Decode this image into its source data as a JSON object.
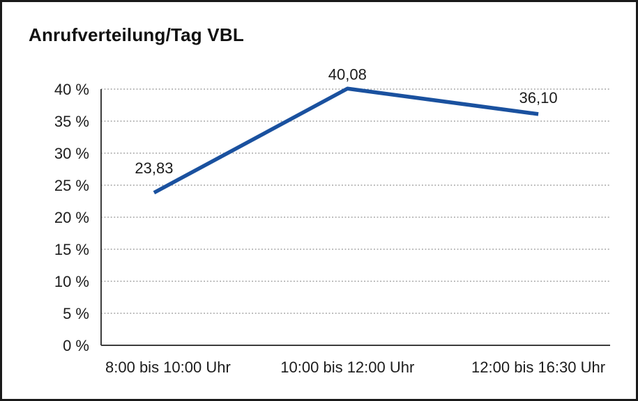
{
  "chart_data": {
    "type": "line",
    "title": "Anrufverteilung/Tag VBL",
    "categories": [
      "8:00 bis 10:00 Uhr",
      "10:00 bis 12:00 Uhr",
      "12:00 bis 16:30 Uhr"
    ],
    "values": [
      23.83,
      40.08,
      36.1
    ],
    "point_labels": [
      "23,83",
      "40,08",
      "36,10"
    ],
    "ylim": [
      0,
      40
    ],
    "ytick_step": 5,
    "ytick_labels": [
      "0 %",
      "5 %",
      "10 %",
      "15 %",
      "20 %",
      "25 %",
      "30 %",
      "35 %",
      "40 %"
    ],
    "xlabel": "",
    "ylabel": "",
    "grid": "horizontal-dotted",
    "legend": "none",
    "colors": {
      "line": "#1a519f",
      "axis": "#3c3c3c",
      "gridline": "#8c8c8c",
      "text": "#1c1c1c"
    }
  }
}
